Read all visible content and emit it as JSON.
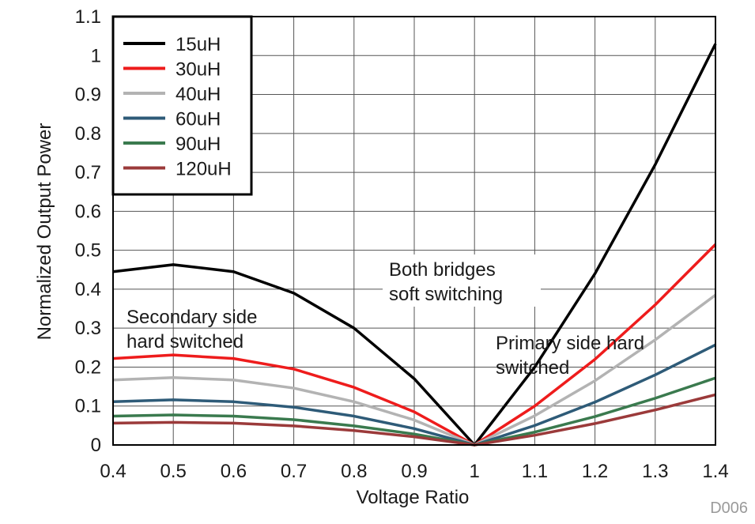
{
  "chart_data": {
    "type": "line",
    "title": "",
    "xlabel": "Voltage Ratio",
    "ylabel": "Normalized Output Power",
    "xlim": [
      0.4,
      1.4
    ],
    "ylim": [
      0,
      1.1
    ],
    "xticks": [
      "0.4",
      "0.5",
      "0.6",
      "0.7",
      "0.8",
      "0.9",
      "1",
      "1.1",
      "1.2",
      "1.3",
      "1.4"
    ],
    "yticks": [
      "0",
      "0.1",
      "0.2",
      "0.3",
      "0.4",
      "0.5",
      "0.6",
      "0.7",
      "0.8",
      "0.9",
      "1",
      "1.1"
    ],
    "grid": true,
    "legend_position": "top-left",
    "x": [
      0.4,
      0.5,
      0.6,
      0.7,
      0.8,
      0.9,
      1.0,
      1.1,
      1.2,
      1.3,
      1.4
    ],
    "series": [
      {
        "name": "15uH",
        "color": "#000000",
        "values": [
          0.445,
          0.463,
          0.445,
          0.39,
          0.3,
          0.17,
          0.0,
          0.2,
          0.44,
          0.72,
          1.03
        ]
      },
      {
        "name": "30uH",
        "color": "#ee1c1c",
        "values": [
          0.222,
          0.231,
          0.222,
          0.195,
          0.148,
          0.085,
          0.0,
          0.1,
          0.22,
          0.36,
          0.515
        ]
      },
      {
        "name": "40uH",
        "color": "#b3b3b3",
        "values": [
          0.167,
          0.173,
          0.167,
          0.146,
          0.111,
          0.064,
          0.0,
          0.075,
          0.165,
          0.27,
          0.385
        ]
      },
      {
        "name": "60uH",
        "color": "#2e5b78",
        "values": [
          0.111,
          0.116,
          0.111,
          0.097,
          0.074,
          0.042,
          0.0,
          0.05,
          0.11,
          0.18,
          0.257
        ]
      },
      {
        "name": "90uH",
        "color": "#3a7a4e",
        "values": [
          0.074,
          0.077,
          0.074,
          0.065,
          0.049,
          0.028,
          0.0,
          0.033,
          0.073,
          0.12,
          0.172
        ]
      },
      {
        "name": "120uH",
        "color": "#9b3a3a",
        "values": [
          0.056,
          0.058,
          0.056,
          0.049,
          0.037,
          0.021,
          0.0,
          0.025,
          0.055,
          0.09,
          0.129
        ]
      }
    ],
    "annotations": [
      {
        "id": "secondary",
        "lines": [
          "Secondary side",
          "hard switched"
        ]
      },
      {
        "id": "both",
        "lines": [
          "Both bridges",
          "soft switching"
        ]
      },
      {
        "id": "primary",
        "lines": [
          "Primary side hard",
          "switched"
        ]
      }
    ],
    "figure_id": "D006"
  }
}
